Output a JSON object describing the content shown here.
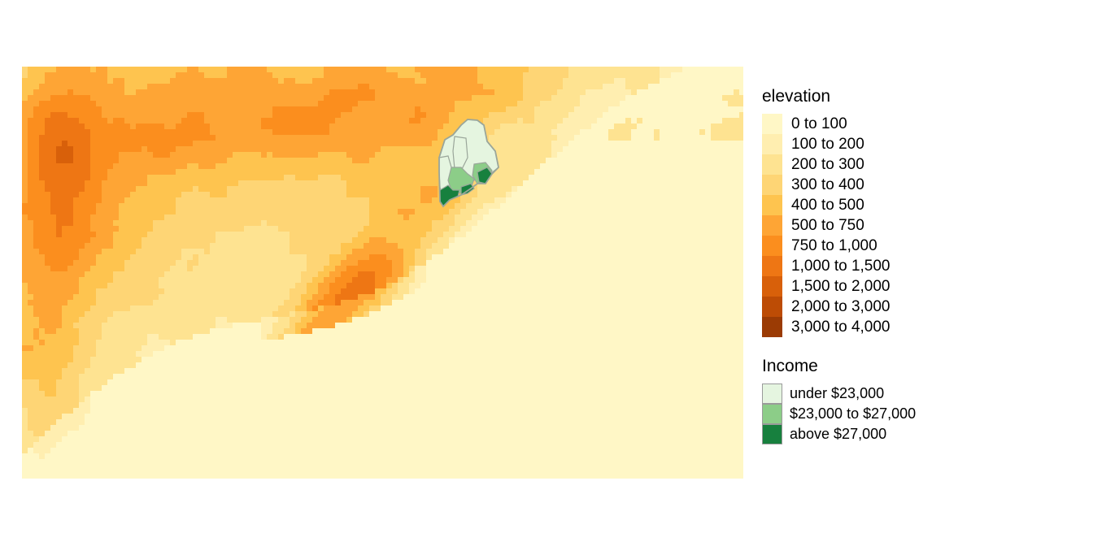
{
  "map": {
    "background_color": "#fff7c6",
    "elevation_palette": [
      "#fff7c6",
      "#ffeeb0",
      "#fee391",
      "#fed575",
      "#fec44f",
      "#fea535",
      "#fb8e1e",
      "#ee7614",
      "#d8600a",
      "#bd4c05",
      "#9b3b04"
    ],
    "income_palette": [
      "#e5f5e0",
      "#8ccd88",
      "#17803e"
    ],
    "state_border_color": "#9aa69a"
  },
  "legend": {
    "elevation_title": "elevation",
    "elevation_items": [
      {
        "label": "0 to 100",
        "color": "#fff7c6"
      },
      {
        "label": "100 to 200",
        "color": "#ffeeb0"
      },
      {
        "label": "200 to 300",
        "color": "#fee391"
      },
      {
        "label": "300 to 400",
        "color": "#fed575"
      },
      {
        "label": "400 to 500",
        "color": "#fec44f"
      },
      {
        "label": "500 to 750",
        "color": "#fea535"
      },
      {
        "label": "750 to 1,000",
        "color": "#fb8e1e"
      },
      {
        "label": "1,000 to 1,500",
        "color": "#ee7614"
      },
      {
        "label": "1,500 to 2,000",
        "color": "#d8600a"
      },
      {
        "label": "2,000 to 3,000",
        "color": "#bd4c05"
      },
      {
        "label": "3,000 to 4,000",
        "color": "#9b3b04"
      }
    ],
    "income_title": "Income",
    "income_items": [
      {
        "label": "under $23,000",
        "color": "#e5f5e0"
      },
      {
        "label": "$23,000 to $27,000",
        "color": "#8ccd88"
      },
      {
        "label": "above $27,000",
        "color": "#17803e"
      }
    ]
  }
}
